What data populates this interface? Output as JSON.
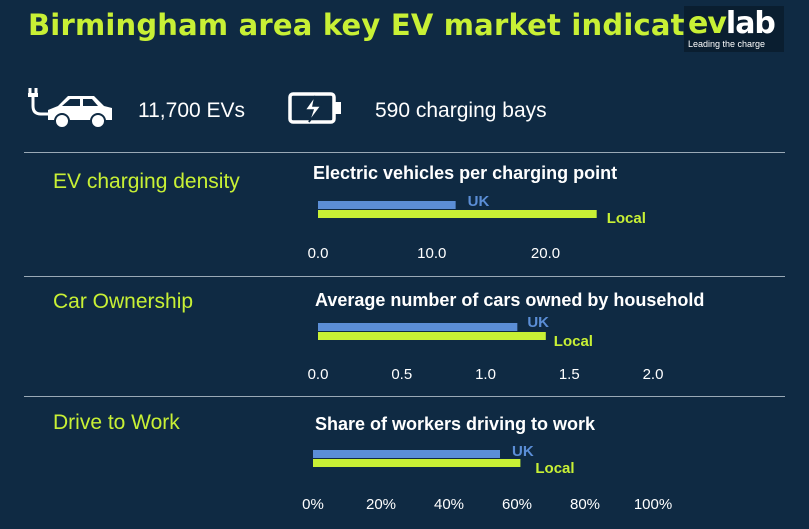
{
  "header": {
    "title": "Birmingham area key EV market indicators"
  },
  "logo": {
    "ev": "ev",
    "lab": "lab",
    "tagline": "Leading the charge"
  },
  "stats": {
    "evs": {
      "icon": "ev-car-plug-icon",
      "text": "11,700 EVs"
    },
    "bays": {
      "icon": "battery-charging-icon",
      "text": "590 charging bays"
    }
  },
  "colors": {
    "uk": "#5b8ed6",
    "local": "#c8f035",
    "background": "#0f2a43"
  },
  "sections": [
    {
      "label": "EV charging density"
    },
    {
      "label": "Car Ownership"
    },
    {
      "label": "Drive to Work"
    }
  ],
  "chart_data": [
    {
      "type": "bar",
      "orientation": "horizontal",
      "title": "Electric vehicles per charging point",
      "series": [
        {
          "name": "UK",
          "value": 12.1
        },
        {
          "name": "Local",
          "value": 24.5
        }
      ],
      "xlim": [
        0,
        24
      ],
      "ticks": [
        0,
        10,
        20
      ],
      "tick_labels": [
        "0.0",
        "10.0",
        "20.0"
      ],
      "grid": false
    },
    {
      "type": "bar",
      "orientation": "horizontal",
      "title": "Average number of cars owned by household",
      "series": [
        {
          "name": "UK",
          "value": 1.19
        },
        {
          "name": "Local",
          "value": 1.36
        }
      ],
      "xlim": [
        0,
        2
      ],
      "ticks": [
        0,
        0.5,
        1,
        1.5,
        2
      ],
      "tick_labels": [
        "0.0",
        "0.5",
        "1.0",
        "1.5",
        "2.0"
      ],
      "grid": false
    },
    {
      "type": "bar",
      "orientation": "horizontal",
      "title": "Share of workers driving to work",
      "series": [
        {
          "name": "UK",
          "value": 55
        },
        {
          "name": "Local",
          "value": 61
        }
      ],
      "xlim": [
        0,
        100
      ],
      "ticks": [
        0,
        20,
        40,
        60,
        80,
        100
      ],
      "tick_labels": [
        "0%",
        "20%",
        "40%",
        "60%",
        "80%",
        "100%"
      ],
      "grid": false
    }
  ]
}
